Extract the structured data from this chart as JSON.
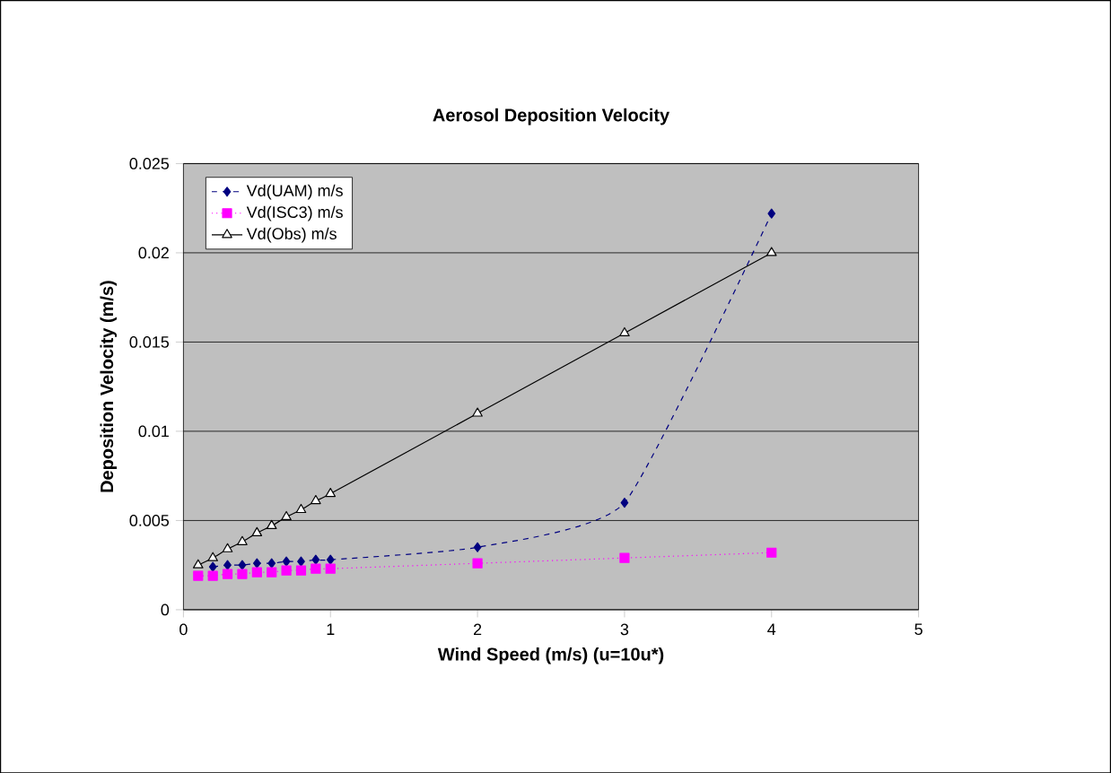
{
  "chart_data": {
    "type": "line",
    "title": "Aerosol Deposition Velocity",
    "xlabel": "Wind Speed (m/s) (u=10u*)",
    "ylabel": "Deposition Velocity (m/s)",
    "x": [
      0.1,
      0.2,
      0.3,
      0.4,
      0.5,
      0.6,
      0.7,
      0.8,
      0.9,
      1.0,
      2,
      3,
      4
    ],
    "series": [
      {
        "name": "Vd(UAM) m/s",
        "color": "#000080",
        "marker": "diamond",
        "line_style": "dashed",
        "values": [
          null,
          0.0024,
          0.0025,
          0.0025,
          0.0026,
          0.0026,
          0.0027,
          0.0027,
          0.0028,
          0.0028,
          0.0035,
          0.006,
          0.0222
        ]
      },
      {
        "name": "Vd(ISC3) m/s",
        "color": "#ff00ff",
        "marker": "square",
        "line_style": "dotted",
        "values": [
          0.0019,
          0.0019,
          0.002,
          0.002,
          0.0021,
          0.0021,
          0.0022,
          0.0022,
          0.0023,
          0.0023,
          0.0026,
          0.0029,
          0.0032
        ]
      },
      {
        "name": "Vd(Obs) m/s",
        "color": "#000000",
        "marker": "triangle",
        "line_style": "solid",
        "values": [
          0.0025,
          0.0029,
          0.0034,
          0.0038,
          0.0043,
          0.0047,
          0.0052,
          0.0056,
          0.0061,
          0.0065,
          0.011,
          0.0155,
          0.02
        ]
      }
    ],
    "xlim": [
      0,
      5
    ],
    "xticks": [
      0,
      1,
      2,
      3,
      4,
      5
    ],
    "ylim": [
      0,
      0.025
    ],
    "yticks": [
      0,
      0.005,
      0.01,
      0.015,
      0.02,
      0.025
    ],
    "grid": "y",
    "legend": "top left"
  }
}
